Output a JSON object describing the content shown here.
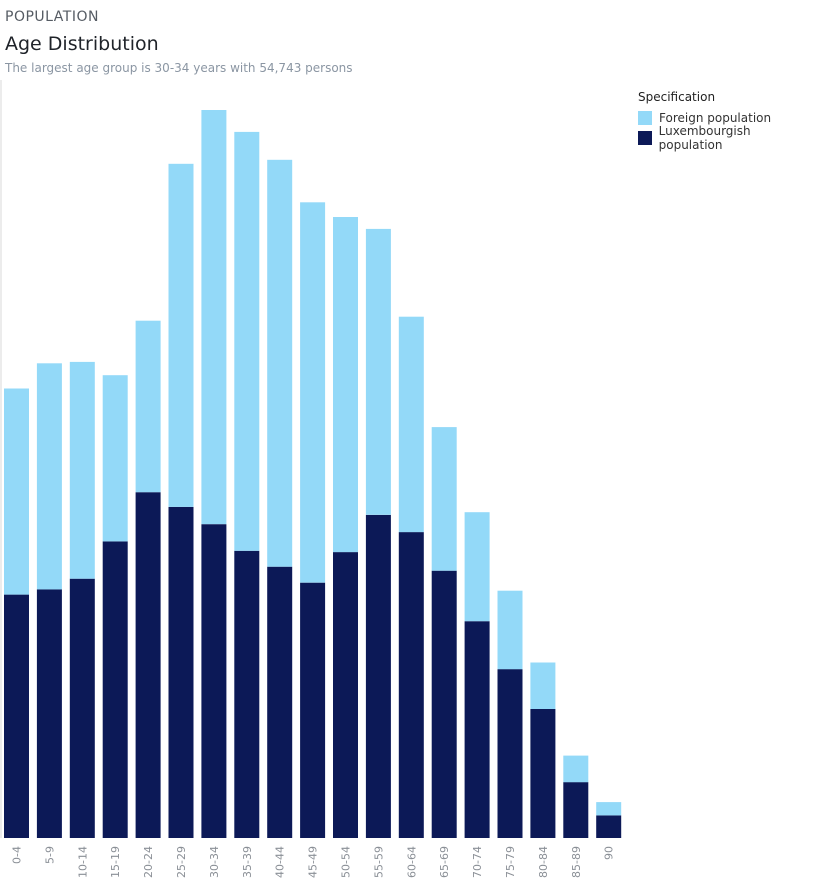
{
  "header": {
    "kicker": "POPULATION",
    "title": "Age Distribution",
    "subtitle": "The largest age group is 30-34 years with 54,743 persons"
  },
  "legend": {
    "title": "Specification",
    "items": [
      {
        "label": "Foreign population",
        "color": "#93d9f8"
      },
      {
        "label": "Luxembourgish population",
        "color": "#0c1957"
      }
    ]
  },
  "chart_data": {
    "type": "bar",
    "stacked": true,
    "categories": [
      "0-4",
      "5-9",
      "10-14",
      "15-19",
      "20-24",
      "25-29",
      "30-34",
      "35-39",
      "40-44",
      "45-49",
      "50-54",
      "55-59",
      "60-64",
      "65-69",
      "70-74",
      "75-79",
      "80-84",
      "85-89",
      "90"
    ],
    "series": [
      {
        "name": "Luxembourgish population",
        "color": "#0c1957",
        "values": [
          18300,
          18700,
          19500,
          22300,
          26000,
          24900,
          23600,
          21600,
          20400,
          19200,
          21500,
          24300,
          23000,
          20100,
          16300,
          12700,
          9700,
          4200,
          1700
        ]
      },
      {
        "name": "Foreign population",
        "color": "#93d9f8",
        "values": [
          15500,
          17000,
          16300,
          12500,
          12900,
          25800,
          31143,
          31500,
          30600,
          28600,
          25200,
          21500,
          16200,
          10800,
          8200,
          5900,
          3500,
          2000,
          1000
        ]
      }
    ],
    "ylim": [
      0,
      57000
    ],
    "grid": false,
    "legend_position": "top-right"
  }
}
